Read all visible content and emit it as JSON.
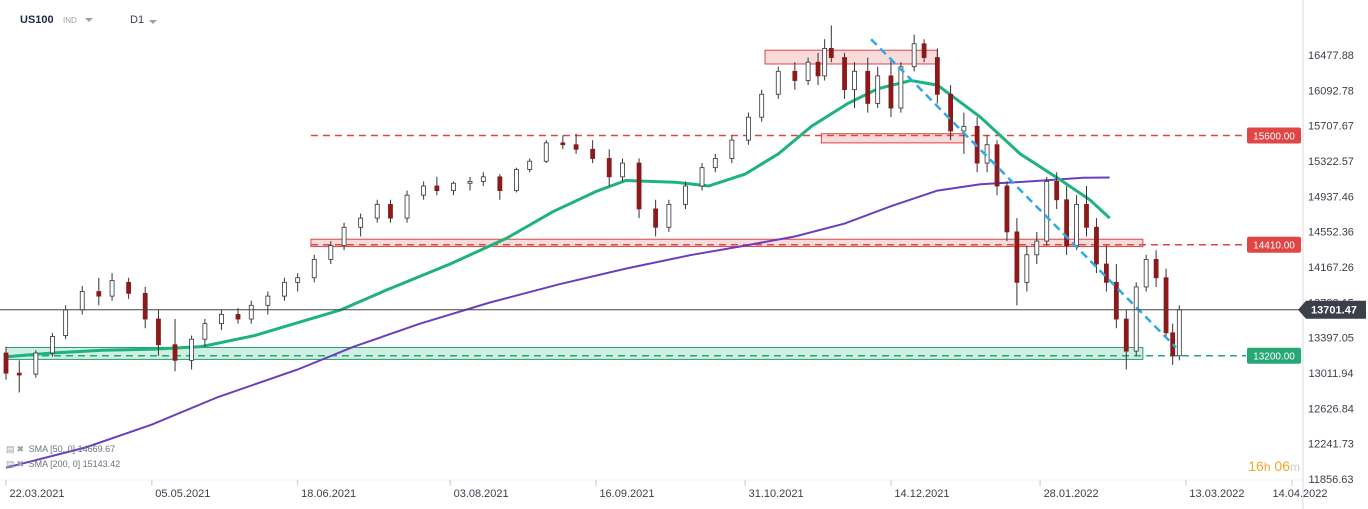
{
  "header": {
    "symbol": "US100",
    "type": "IND",
    "timeframe": "D1"
  },
  "legend": [
    {
      "label": "SMA [50, 0]",
      "value": "14669.67"
    },
    {
      "label": "SMA [200, 0]",
      "value": "15143.42"
    }
  ],
  "timer": {
    "hours": "16",
    "h_unit": "h",
    "minutes": "06",
    "m_unit": "m"
  },
  "colors": {
    "up": "#ffffff",
    "down": "#8b1a1a",
    "wick": "#333333",
    "sma50": "#1db27e",
    "sma200": "#6a3fbf",
    "resistance": "#e04646",
    "support": "#25a873",
    "trendline": "#2fa8e6",
    "price_line": "#444444"
  },
  "chart_data": {
    "type": "candlestick",
    "symbol": "US100",
    "timeframe": "D1",
    "ylim": [
      11856.63,
      16750
    ],
    "y_ticks": [
      "16477.88",
      "16092.78",
      "15707.67",
      "15322.57",
      "14937.46",
      "14552.36",
      "14167.26",
      "13782.15",
      "13397.05",
      "13011.94",
      "12626.84",
      "12241.73",
      "11856.63"
    ],
    "x_ticks": [
      "22.03.2021",
      "05.05.2021",
      "18.06.2021",
      "03.08.2021",
      "16.09.2021",
      "31.10.2021",
      "14.12.2021",
      "28.01.2022",
      "13.03.2022",
      "14.04.2022"
    ],
    "current_price": {
      "label": "13701.47",
      "value": 13701.47
    },
    "levels": [
      {
        "label": "15600.00",
        "value": 15600.0,
        "kind": "resistance"
      },
      {
        "label": "14410.00",
        "value": 14410.0,
        "kind": "resistance"
      },
      {
        "label": "13200.00",
        "value": 13200.0,
        "kind": "support"
      }
    ],
    "zones": [
      {
        "kind": "resistance",
        "start": "2021-11-06",
        "end": "2021-12-28",
        "low": 16380,
        "high": 16530
      },
      {
        "kind": "resistance",
        "start": "2021-11-23",
        "end": "2022-01-05",
        "low": 15520,
        "high": 15620
      },
      {
        "kind": "resistance",
        "start": "2021-06-22",
        "end": "2022-02-28",
        "low": 14390,
        "high": 14470
      },
      {
        "kind": "support",
        "start": "2021-03-22",
        "end": "2022-02-28",
        "low": 13160,
        "high": 13290
      }
    ],
    "trendline": {
      "start": {
        "date": "2021-12-08",
        "value": 16650
      },
      "end": {
        "date": "2022-03-10",
        "value": 13290
      }
    },
    "sma50_path": [
      [
        "2021-03-22",
        13190
      ],
      [
        "2021-04-05",
        13230
      ],
      [
        "2021-04-20",
        13260
      ],
      [
        "2021-05-05",
        13270
      ],
      [
        "2021-05-20",
        13300
      ],
      [
        "2021-06-05",
        13420
      ],
      [
        "2021-06-18",
        13560
      ],
      [
        "2021-07-01",
        13700
      ],
      [
        "2021-07-15",
        13920
      ],
      [
        "2021-08-03",
        14200
      ],
      [
        "2021-08-20",
        14480
      ],
      [
        "2021-09-03",
        14770
      ],
      [
        "2021-09-16",
        14990
      ],
      [
        "2021-09-25",
        15110
      ],
      [
        "2021-10-10",
        15090
      ],
      [
        "2021-10-20",
        15050
      ],
      [
        "2021-10-31",
        15180
      ],
      [
        "2021-11-10",
        15400
      ],
      [
        "2021-11-20",
        15700
      ],
      [
        "2021-12-01",
        15950
      ],
      [
        "2021-12-10",
        16110
      ],
      [
        "2021-12-20",
        16200
      ],
      [
        "2021-12-28",
        16150
      ],
      [
        "2022-01-10",
        15800
      ],
      [
        "2022-01-22",
        15400
      ],
      [
        "2022-02-03",
        15120
      ],
      [
        "2022-02-12",
        14900
      ],
      [
        "2022-02-18",
        14700
      ]
    ],
    "sma200_path": [
      [
        "2021-03-22",
        11980
      ],
      [
        "2021-04-15",
        12200
      ],
      [
        "2021-05-05",
        12450
      ],
      [
        "2021-05-25",
        12750
      ],
      [
        "2021-06-18",
        13050
      ],
      [
        "2021-07-05",
        13300
      ],
      [
        "2021-07-25",
        13550
      ],
      [
        "2021-08-15",
        13780
      ],
      [
        "2021-09-05",
        13980
      ],
      [
        "2021-09-25",
        14150
      ],
      [
        "2021-10-15",
        14300
      ],
      [
        "2021-10-31",
        14400
      ],
      [
        "2021-11-15",
        14500
      ],
      [
        "2021-11-30",
        14640
      ],
      [
        "2021-12-14",
        14830
      ],
      [
        "2021-12-28",
        15000
      ],
      [
        "2022-01-10",
        15070
      ],
      [
        "2022-01-25",
        15100
      ],
      [
        "2022-02-10",
        15140
      ],
      [
        "2022-02-18",
        15143
      ]
    ],
    "candles": [
      [
        "2021-03-22",
        13230,
        13300,
        12940,
        13010
      ],
      [
        "2021-03-26",
        13010,
        13150,
        12800,
        12990
      ],
      [
        "2021-03-31",
        13000,
        13260,
        12960,
        13230
      ],
      [
        "2021-04-05",
        13230,
        13450,
        13190,
        13410
      ],
      [
        "2021-04-09",
        13420,
        13750,
        13380,
        13700
      ],
      [
        "2021-04-14",
        13700,
        13960,
        13650,
        13900
      ],
      [
        "2021-04-19",
        13900,
        14050,
        13750,
        13850
      ],
      [
        "2021-04-23",
        13850,
        14100,
        13800,
        14020
      ],
      [
        "2021-04-28",
        14000,
        14050,
        13820,
        13880
      ],
      [
        "2021-05-03",
        13880,
        13950,
        13500,
        13600
      ],
      [
        "2021-05-07",
        13600,
        13700,
        13200,
        13320
      ],
      [
        "2021-05-12",
        13320,
        13600,
        13030,
        13150
      ],
      [
        "2021-05-17",
        13150,
        13420,
        13050,
        13380
      ],
      [
        "2021-05-21",
        13380,
        13600,
        13300,
        13550
      ],
      [
        "2021-05-26",
        13550,
        13700,
        13480,
        13650
      ],
      [
        "2021-05-31",
        13650,
        13720,
        13550,
        13600
      ],
      [
        "2021-06-04",
        13600,
        13800,
        13550,
        13750
      ],
      [
        "2021-06-09",
        13750,
        13900,
        13650,
        13850
      ],
      [
        "2021-06-14",
        13850,
        14050,
        13800,
        14000
      ],
      [
        "2021-06-18",
        14000,
        14100,
        13900,
        14050
      ],
      [
        "2021-06-23",
        14050,
        14300,
        14000,
        14250
      ],
      [
        "2021-06-28",
        14250,
        14450,
        14200,
        14400
      ],
      [
        "2021-07-02",
        14400,
        14650,
        14350,
        14600
      ],
      [
        "2021-07-07",
        14600,
        14750,
        14500,
        14700
      ],
      [
        "2021-07-12",
        14700,
        14900,
        14650,
        14850
      ],
      [
        "2021-07-16",
        14850,
        14900,
        14650,
        14700
      ],
      [
        "2021-07-21",
        14700,
        15000,
        14650,
        14950
      ],
      [
        "2021-07-26",
        14950,
        15100,
        14900,
        15050
      ],
      [
        "2021-07-30",
        15050,
        15150,
        14950,
        15000
      ],
      [
        "2021-08-04",
        15000,
        15100,
        14950,
        15080
      ],
      [
        "2021-08-09",
        15080,
        15150,
        15000,
        15100
      ],
      [
        "2021-08-13",
        15100,
        15200,
        15050,
        15150
      ],
      [
        "2021-08-18",
        15150,
        15180,
        14900,
        15000
      ],
      [
        "2021-08-23",
        15000,
        15250,
        14980,
        15230
      ],
      [
        "2021-08-27",
        15230,
        15350,
        15200,
        15320
      ],
      [
        "2021-09-01",
        15320,
        15550,
        15300,
        15520
      ],
      [
        "2021-09-06",
        15520,
        15600,
        15450,
        15500
      ],
      [
        "2021-09-10",
        15500,
        15620,
        15400,
        15450
      ],
      [
        "2021-09-15",
        15450,
        15550,
        15300,
        15350
      ],
      [
        "2021-09-20",
        15350,
        15450,
        15050,
        15150
      ],
      [
        "2021-09-24",
        15150,
        15350,
        15100,
        15300
      ],
      [
        "2021-09-29",
        15300,
        15350,
        14700,
        14800
      ],
      [
        "2021-10-04",
        14800,
        14900,
        14500,
        14600
      ],
      [
        "2021-10-08",
        14600,
        14900,
        14550,
        14850
      ],
      [
        "2021-10-13",
        14850,
        15100,
        14800,
        15050
      ],
      [
        "2021-10-18",
        15050,
        15300,
        15000,
        15250
      ],
      [
        "2021-10-22",
        15250,
        15400,
        15200,
        15350
      ],
      [
        "2021-10-27",
        15350,
        15600,
        15300,
        15550
      ],
      [
        "2021-11-01",
        15550,
        15850,
        15500,
        15800
      ],
      [
        "2021-11-05",
        15800,
        16100,
        15750,
        16050
      ],
      [
        "2021-11-10",
        16050,
        16350,
        16000,
        16300
      ],
      [
        "2021-11-15",
        16300,
        16400,
        16100,
        16200
      ],
      [
        "2021-11-19",
        16200,
        16450,
        16150,
        16400
      ],
      [
        "2021-11-22",
        16400,
        16500,
        16150,
        16250
      ],
      [
        "2021-11-24",
        16250,
        16650,
        16200,
        16550
      ],
      [
        "2021-11-26",
        16550,
        16800,
        16400,
        16450
      ],
      [
        "2021-11-30",
        16450,
        16500,
        16000,
        16100
      ],
      [
        "2021-12-03",
        16100,
        16400,
        15900,
        16300
      ],
      [
        "2021-12-07",
        16300,
        16450,
        15850,
        15950
      ],
      [
        "2021-12-10",
        15950,
        16350,
        15900,
        16250
      ],
      [
        "2021-12-14",
        16250,
        16450,
        15800,
        15900
      ],
      [
        "2021-12-17",
        15900,
        16400,
        15850,
        16350
      ],
      [
        "2021-12-21",
        16350,
        16700,
        16300,
        16600
      ],
      [
        "2021-12-24",
        16600,
        16650,
        16400,
        16450
      ],
      [
        "2021-12-28",
        16450,
        16550,
        15950,
        16050
      ],
      [
        "2022-01-01",
        16050,
        16150,
        15550,
        15650
      ],
      [
        "2022-01-05",
        15650,
        15850,
        15400,
        15700
      ],
      [
        "2022-01-09",
        15700,
        15800,
        15200,
        15300
      ],
      [
        "2022-01-12",
        15300,
        15600,
        15200,
        15500
      ],
      [
        "2022-01-15",
        15500,
        15550,
        14950,
        15050
      ],
      [
        "2022-01-18",
        15050,
        15100,
        14450,
        14550
      ],
      [
        "2022-01-21",
        14550,
        14700,
        13750,
        14000
      ],
      [
        "2022-01-24",
        14000,
        14400,
        13900,
        14300
      ],
      [
        "2022-01-27",
        14300,
        14550,
        14200,
        14450
      ],
      [
        "2022-01-30",
        14450,
        15150,
        14400,
        15100
      ],
      [
        "2022-02-02",
        15100,
        15200,
        14800,
        14900
      ],
      [
        "2022-02-05",
        14900,
        15050,
        14300,
        14400
      ],
      [
        "2022-02-08",
        14400,
        14950,
        14350,
        14850
      ],
      [
        "2022-02-11",
        14850,
        15050,
        14500,
        14600
      ],
      [
        "2022-02-14",
        14600,
        14700,
        14100,
        14200
      ],
      [
        "2022-02-17",
        14200,
        14400,
        13900,
        14000
      ],
      [
        "2022-02-20",
        14000,
        14200,
        13500,
        13600
      ],
      [
        "2022-02-23",
        13600,
        13700,
        13050,
        13250
      ],
      [
        "2022-02-26",
        13250,
        14000,
        13200,
        13950
      ],
      [
        "2022-03-01",
        13950,
        14300,
        13900,
        14250
      ],
      [
        "2022-03-04",
        14250,
        14350,
        13950,
        14050
      ],
      [
        "2022-03-07",
        14050,
        14150,
        13400,
        13450
      ],
      [
        "2022-03-09",
        13450,
        13550,
        13100,
        13200
      ],
      [
        "2022-03-11",
        13200,
        13750,
        13150,
        13701.47
      ]
    ]
  }
}
